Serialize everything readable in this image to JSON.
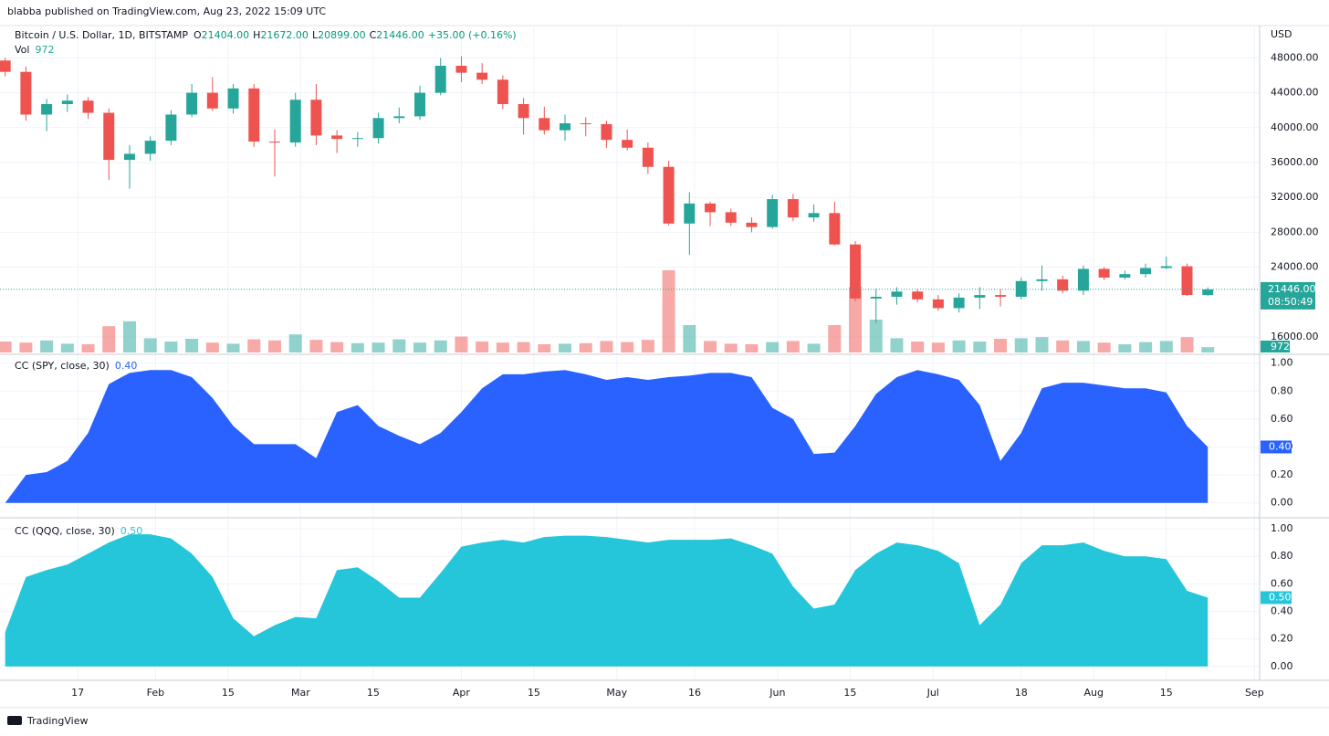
{
  "header": {
    "publisher": "blabba published on TradingView.com, Aug 23, 2022 15:09 UTC",
    "symbol": "Bitcoin / U.S. Dollar, 1D, BITSTAMP",
    "ohlc": [
      {
        "label": "O",
        "value": "21404.00"
      },
      {
        "label": "H",
        "value": "21672.00"
      },
      {
        "label": "L",
        "value": "20899.00"
      },
      {
        "label": "C",
        "value": "21446.00"
      }
    ],
    "change": "+35.00 (+0.16%)",
    "currency": "USD"
  },
  "x_axis": {
    "xlim": [
      "2022-01-02",
      "2022-09-02"
    ],
    "ticks": [
      {
        "value": "2022-01-17",
        "label": "17"
      },
      {
        "value": "2022-02-01",
        "label": "Feb"
      },
      {
        "value": "2022-02-15",
        "label": "15"
      },
      {
        "value": "2022-03-01",
        "label": "Mar"
      },
      {
        "value": "2022-03-15",
        "label": "15"
      },
      {
        "value": "2022-04-01",
        "label": "Apr"
      },
      {
        "value": "2022-04-15",
        "label": "15"
      },
      {
        "value": "2022-05-01",
        "label": "May"
      },
      {
        "value": "2022-05-16",
        "label": "16"
      },
      {
        "value": "2022-06-01",
        "label": "Jun"
      },
      {
        "value": "2022-06-15",
        "label": "15"
      },
      {
        "value": "2022-07-01",
        "label": "Jul"
      },
      {
        "value": "2022-07-18",
        "label": "18"
      },
      {
        "value": "2022-08-01",
        "label": "Aug"
      },
      {
        "value": "2022-08-15",
        "label": "15"
      },
      {
        "value": "2022-09-01",
        "label": "Sep"
      }
    ]
  },
  "chart_data": [
    {
      "type": "candlestick",
      "up_color": "#26a69a",
      "down_color": "#ef5350",
      "x": [
        "2022-01-03",
        "2022-01-07",
        "2022-01-11",
        "2022-01-15",
        "2022-01-19",
        "2022-01-23",
        "2022-01-27",
        "2022-01-31",
        "2022-02-04",
        "2022-02-08",
        "2022-02-12",
        "2022-02-16",
        "2022-02-20",
        "2022-02-24",
        "2022-02-28",
        "2022-03-04",
        "2022-03-08",
        "2022-03-12",
        "2022-03-16",
        "2022-03-20",
        "2022-03-24",
        "2022-03-28",
        "2022-04-01",
        "2022-04-05",
        "2022-04-09",
        "2022-04-13",
        "2022-04-17",
        "2022-04-21",
        "2022-04-25",
        "2022-04-29",
        "2022-05-03",
        "2022-05-07",
        "2022-05-11",
        "2022-05-15",
        "2022-05-19",
        "2022-05-23",
        "2022-05-27",
        "2022-05-31",
        "2022-06-04",
        "2022-06-08",
        "2022-06-12",
        "2022-06-16",
        "2022-06-20",
        "2022-06-24",
        "2022-06-28",
        "2022-07-02",
        "2022-07-06",
        "2022-07-10",
        "2022-07-14",
        "2022-07-18",
        "2022-07-22",
        "2022-07-26",
        "2022-07-30",
        "2022-08-03",
        "2022-08-07",
        "2022-08-11",
        "2022-08-15",
        "2022-08-19",
        "2022-08-23"
      ],
      "open": [
        47700,
        46400,
        41500,
        42700,
        43100,
        41700,
        36300,
        37000,
        38500,
        41500,
        44000,
        42200,
        44500,
        38400,
        38300,
        43200,
        39100,
        38700,
        38800,
        41100,
        41300,
        44000,
        47100,
        46300,
        45500,
        42700,
        41100,
        39700,
        40500,
        40400,
        38600,
        37700,
        35500,
        29000,
        31300,
        30300,
        29100,
        28600,
        31800,
        29700,
        30200,
        26600,
        20400,
        20600,
        21200,
        20300,
        19300,
        20500,
        20800,
        20600,
        22400,
        22600,
        21300,
        23800,
        22800,
        23200,
        23900,
        24100,
        20800
      ],
      "high": [
        48000,
        47000,
        43300,
        43800,
        43500,
        42200,
        38000,
        39000,
        42000,
        45000,
        45800,
        45000,
        45000,
        39800,
        44000,
        45000,
        39700,
        39500,
        41700,
        42300,
        44800,
        48000,
        48200,
        47400,
        46000,
        43400,
        42400,
        41500,
        41200,
        40800,
        39800,
        38300,
        36200,
        32600,
        31500,
        30700,
        29700,
        32300,
        32400,
        31200,
        31500,
        27000,
        21500,
        21700,
        21500,
        20800,
        21000,
        21700,
        21500,
        22800,
        24200,
        23000,
        24200,
        24000,
        23600,
        24400,
        25200,
        24400,
        21672
      ],
      "low": [
        45900,
        40800,
        39600,
        41800,
        41000,
        34000,
        33000,
        36200,
        38000,
        41200,
        41900,
        41600,
        37800,
        34400,
        37800,
        38000,
        37100,
        37800,
        38200,
        40500,
        40900,
        43700,
        45200,
        45000,
        42100,
        39200,
        39200,
        38500,
        39000,
        37700,
        37400,
        34700,
        28800,
        25400,
        28700,
        28700,
        28000,
        28400,
        29300,
        29200,
        26500,
        20100,
        17600,
        19700,
        20000,
        19000,
        18800,
        19200,
        19500,
        20300,
        21300,
        21000,
        20800,
        22500,
        22600,
        22800,
        23800,
        20700,
        20700
      ],
      "close": [
        46400,
        41500,
        42700,
        43100,
        41700,
        36300,
        37000,
        38500,
        41500,
        44000,
        42200,
        44500,
        38400,
        38300,
        43200,
        39100,
        38700,
        38800,
        41100,
        41300,
        44000,
        47100,
        46300,
        45500,
        42700,
        41100,
        39700,
        40500,
        40400,
        38600,
        37700,
        35500,
        29000,
        31300,
        30300,
        29100,
        28600,
        31800,
        29700,
        30200,
        26600,
        20400,
        20600,
        21200,
        20300,
        19300,
        20500,
        20800,
        20600,
        22400,
        22600,
        21300,
        23800,
        22800,
        23200,
        23900,
        24100,
        20800,
        21446
      ],
      "last_price_label": "21446.00",
      "countdown": "08:50:49",
      "volume": {
        "name": "Vol",
        "last_label": "972",
        "values": [
          2000,
          1800,
          2200,
          1600,
          1500,
          4800,
          5700,
          2600,
          2000,
          2500,
          1800,
          1600,
          2400,
          2200,
          3300,
          2300,
          1900,
          1700,
          1800,
          2400,
          1800,
          2200,
          2900,
          2000,
          1800,
          1900,
          1500,
          1600,
          1700,
          2100,
          1900,
          2300,
          15000,
          5000,
          2100,
          1600,
          1500,
          1900,
          2100,
          1600,
          5000,
          12000,
          6000,
          2600,
          2000,
          1800,
          2200,
          2000,
          2500,
          2600,
          2800,
          2200,
          2100,
          1800,
          1500,
          1900,
          2100,
          2800,
          972
        ]
      },
      "ylim": [
        14000,
        51500
      ],
      "yticks": [
        {
          "value": 16000,
          "label": "16000.00"
        },
        {
          "value": 24000,
          "label": "24000.00"
        },
        {
          "value": 28000,
          "label": "28000.00"
        },
        {
          "value": 32000,
          "label": "32000.00"
        },
        {
          "value": 36000,
          "label": "36000.00"
        },
        {
          "value": 40000,
          "label": "40000.00"
        },
        {
          "value": 44000,
          "label": "44000.00"
        },
        {
          "value": 48000,
          "label": "48000.00"
        }
      ]
    },
    {
      "type": "area",
      "title": "CC (SPY, close, 30)",
      "ylim": [
        -0.1,
        1.05
      ],
      "yticks": [
        {
          "value": 0,
          "label": "0.00"
        },
        {
          "value": 0.2,
          "label": "0.20"
        },
        {
          "value": 0.4,
          "label": "0.40"
        },
        {
          "value": 0.6,
          "label": "0.60"
        },
        {
          "value": 0.8,
          "label": "0.80"
        },
        {
          "value": 1,
          "label": "1.00"
        }
      ],
      "series": [
        {
          "name": "CC (SPY, close, 30)",
          "color": "#2962ff",
          "last_label": "0.40",
          "values": [
            0.0,
            0.2,
            0.22,
            0.3,
            0.5,
            0.85,
            0.93,
            0.95,
            0.95,
            0.9,
            0.75,
            0.55,
            0.42,
            0.42,
            0.42,
            0.32,
            0.65,
            0.7,
            0.55,
            0.48,
            0.42,
            0.5,
            0.65,
            0.82,
            0.92,
            0.92,
            0.94,
            0.95,
            0.92,
            0.88,
            0.9,
            0.88,
            0.9,
            0.91,
            0.93,
            0.93,
            0.9,
            0.68,
            0.6,
            0.35,
            0.36,
            0.55,
            0.78,
            0.9,
            0.95,
            0.92,
            0.88,
            0.7,
            0.3,
            0.5,
            0.82,
            0.86,
            0.86,
            0.84,
            0.82,
            0.82,
            0.79,
            0.55,
            0.4
          ]
        }
      ]
    },
    {
      "type": "area",
      "title": "CC (QQQ, close, 30)",
      "ylim": [
        -0.1,
        1.06
      ],
      "yticks": [
        {
          "value": 0,
          "label": "0.00"
        },
        {
          "value": 0.2,
          "label": "0.20"
        },
        {
          "value": 0.4,
          "label": "0.40"
        },
        {
          "value": 0.6,
          "label": "0.60"
        },
        {
          "value": 0.8,
          "label": "0.80"
        },
        {
          "value": 1,
          "label": "1.00"
        }
      ],
      "series": [
        {
          "name": "CC (QQQ, close, 30)",
          "color": "#26c6da",
          "last_label": "0.50",
          "values": [
            0.25,
            0.65,
            0.7,
            0.74,
            0.82,
            0.9,
            0.96,
            0.96,
            0.93,
            0.82,
            0.65,
            0.35,
            0.22,
            0.3,
            0.36,
            0.35,
            0.7,
            0.72,
            0.62,
            0.5,
            0.5,
            0.68,
            0.87,
            0.9,
            0.92,
            0.9,
            0.94,
            0.95,
            0.95,
            0.94,
            0.92,
            0.9,
            0.92,
            0.92,
            0.92,
            0.93,
            0.88,
            0.82,
            0.58,
            0.42,
            0.45,
            0.7,
            0.82,
            0.9,
            0.88,
            0.84,
            0.75,
            0.3,
            0.45,
            0.75,
            0.88,
            0.88,
            0.9,
            0.84,
            0.8,
            0.8,
            0.78,
            0.55,
            0.5
          ]
        }
      ]
    }
  ],
  "footer": "TradingView"
}
